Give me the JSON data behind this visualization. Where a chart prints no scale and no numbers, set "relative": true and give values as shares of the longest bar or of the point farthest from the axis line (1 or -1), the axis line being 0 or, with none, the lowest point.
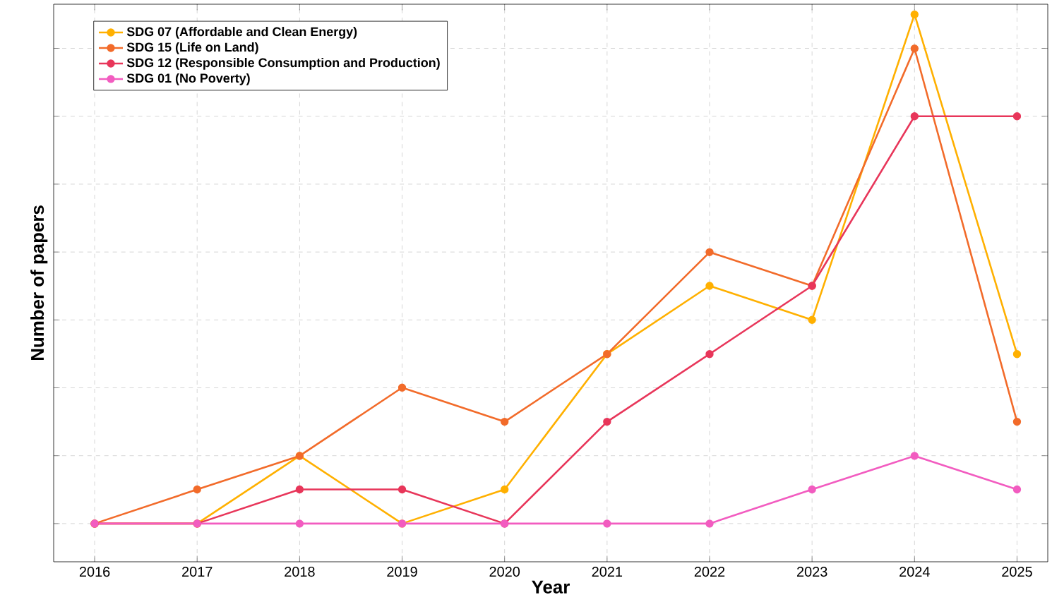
{
  "chart_data": {
    "type": "line",
    "xlabel": "Year",
    "ylabel": "Number of papers",
    "relative": true,
    "x": [
      2016,
      2017,
      2018,
      2019,
      2020,
      2021,
      2022,
      2023,
      2024,
      2025
    ],
    "xlim": [
      2015.6,
      2025.3
    ],
    "xticks": [
      2016,
      2017,
      2018,
      2019,
      2020,
      2021,
      2022,
      2023,
      2024,
      2025
    ],
    "series": [
      {
        "name": "SDG 07 (Affordable and Clean Energy)",
        "color": "#ffb000",
        "values": [
          0,
          0,
          0.133,
          0,
          0.067,
          0.333,
          0.467,
          0.4,
          1,
          0.333
        ]
      },
      {
        "name": "SDG 15 (Life on Land)",
        "color": "#f26b2a",
        "values": [
          0,
          0.067,
          0.133,
          0.267,
          0.2,
          0.333,
          0.533,
          0.467,
          0.933,
          0.2
        ]
      },
      {
        "name": "SDG 12 (Responsible Consumption and Production)",
        "color": "#e8365a",
        "values": [
          0,
          0,
          0.067,
          0.067,
          0,
          0.2,
          0.333,
          0.467,
          0.8,
          0.8
        ]
      },
      {
        "name": "SDG 01 (No Poverty)",
        "color": "#f25cc0",
        "values": [
          0,
          0,
          0,
          0,
          0,
          0,
          0,
          0.067,
          0.133,
          0.067
        ]
      }
    ],
    "grid": true,
    "legend": "top left",
    "marker": "circle",
    "line_style": "solid"
  }
}
